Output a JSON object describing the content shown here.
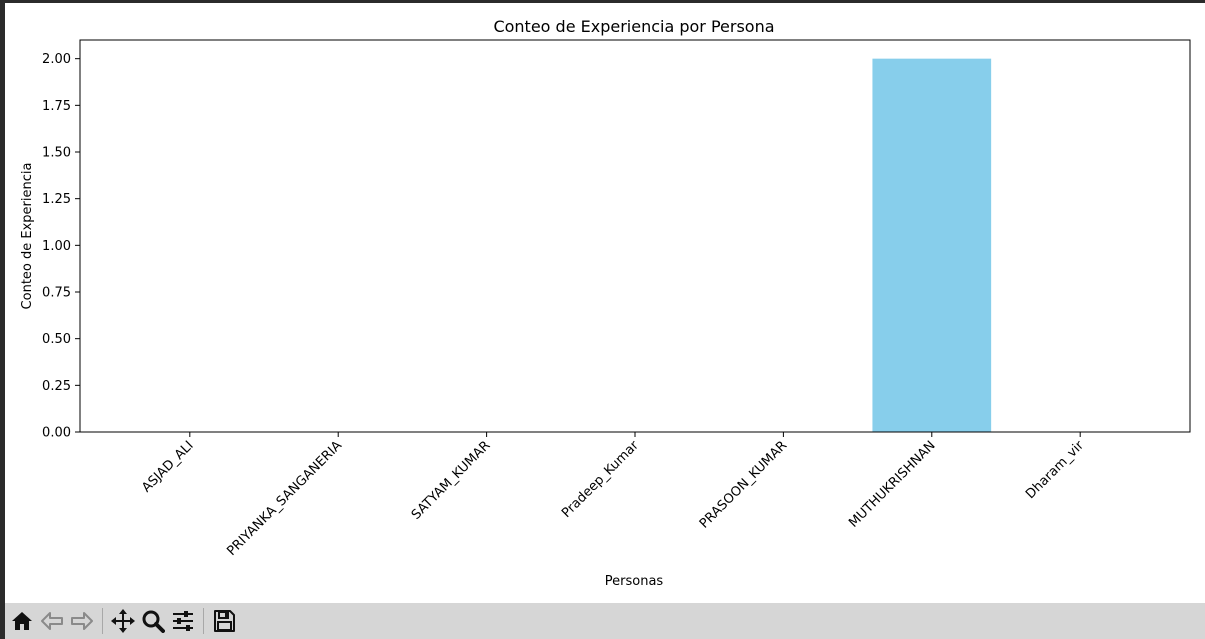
{
  "chart_data": {
    "type": "bar",
    "title": "Conteo de Experiencia por Persona",
    "xlabel": "Personas",
    "ylabel": "Conteo de Experiencia",
    "categories": [
      "ASJAD_ALI",
      "PRIYANKA_SANGANERIA",
      "SATYAM_KUMAR",
      "Pradeep_Kumar",
      "PRASOON_KUMAR",
      "MUTHUKRISHNAN",
      "Dharam_vir"
    ],
    "values": [
      0,
      0,
      0,
      0,
      0,
      2,
      0
    ],
    "ylim": [
      0,
      2.1
    ],
    "yticks": [
      "0.00",
      "0.25",
      "0.50",
      "0.75",
      "1.00",
      "1.25",
      "1.50",
      "1.75",
      "2.00"
    ],
    "bar_color": "#87ceeb",
    "grid": false,
    "legend": "none"
  },
  "toolbar": {
    "buttons": [
      "home-icon",
      "back-arrow-icon",
      "forward-arrow-icon",
      "pan-icon",
      "zoom-icon",
      "configure-subplots-icon",
      "save-icon"
    ]
  }
}
